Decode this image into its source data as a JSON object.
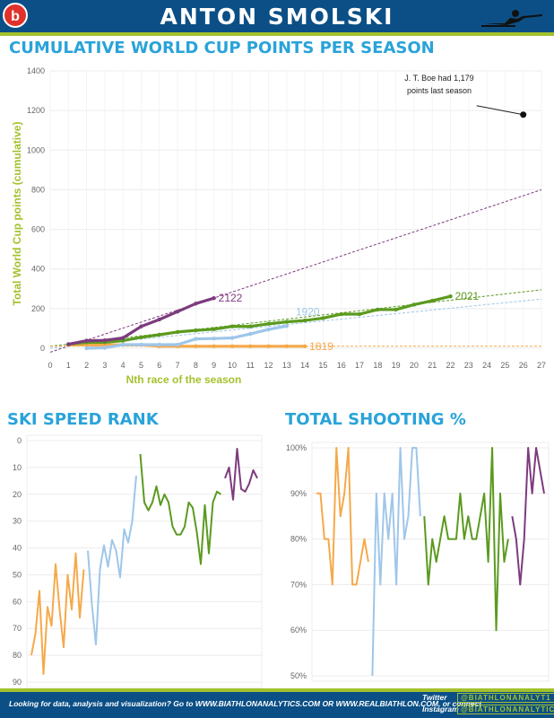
{
  "header": {
    "title": "ANTON SMOLSKI"
  },
  "sections": {
    "cumulative_title": "CUMULATIVE WORLD CUP POINTS PER SEASON",
    "ski_title": "SKI SPEED RANK",
    "shooting_title": "TOTAL SHOOTING %"
  },
  "footer": {
    "text": "Looking for data, analysis and visualization? Go to WWW.BIATHLONANALYTICS.COM OR WWW.REALBIATHLON.COM, or connect",
    "twitter_label": "Twitter",
    "twitter_handle": "@BIATHLONANALYT1",
    "instagram_label": "Instagram",
    "instagram_handle": "@BIATHLONANALYTICS"
  },
  "colors": {
    "header_bg": "#0b4f86",
    "accent_green": "#a3c12c",
    "title_blue": "#29a3d9",
    "s1819": "#f5a94a",
    "s1920": "#9fc6ea",
    "s2021": "#5b9a1f",
    "s2122": "#7d3b7e"
  },
  "chart_data": [
    {
      "type": "line",
      "xlabel": "Nth race of the season",
      "ylabel": "Total World Cup points (cumulative)",
      "xlim": [
        0,
        27
      ],
      "ylim": [
        0,
        1400
      ],
      "x_ticks": [
        0,
        1,
        2,
        3,
        4,
        5,
        6,
        7,
        8,
        9,
        10,
        11,
        12,
        13,
        14,
        15,
        16,
        17,
        18,
        19,
        20,
        21,
        22,
        23,
        24,
        25,
        26,
        27
      ],
      "y_ticks": [
        0,
        200,
        400,
        600,
        800,
        1000,
        1200,
        1400
      ],
      "annotation": {
        "lines": [
          "J. T. Boe had 1,179",
          "points last season"
        ],
        "point": [
          26,
          1179
        ]
      },
      "series": [
        {
          "name": "1819",
          "color": "#f5a94a",
          "x": [
            1,
            2,
            3,
            4,
            5,
            6,
            7,
            8,
            9,
            10,
            11,
            12,
            13,
            14
          ],
          "y": [
            17,
            17,
            17,
            17,
            17,
            10,
            10,
            10,
            10,
            10,
            10,
            10,
            10,
            10
          ]
        },
        {
          "name": "1920",
          "color": "#9fc6ea",
          "x": [
            2,
            3,
            4,
            5,
            6,
            7,
            8,
            9,
            10,
            11,
            12,
            13
          ],
          "y": [
            0,
            2,
            18,
            18,
            18,
            18,
            47,
            49,
            52,
            72,
            95,
            112
          ]
        },
        {
          "name": "2021",
          "color": "#5b9a1f",
          "x": [
            1,
            2,
            3,
            4,
            5,
            6,
            7,
            8,
            9,
            10,
            11,
            12,
            13,
            14,
            15,
            16,
            17,
            18,
            19,
            20,
            21,
            22
          ],
          "y": [
            20,
            30,
            30,
            38,
            55,
            68,
            82,
            90,
            96,
            110,
            110,
            123,
            133,
            140,
            152,
            172,
            172,
            195,
            195,
            220,
            240,
            262
          ]
        },
        {
          "name": "2122",
          "color": "#7d3b7e",
          "x": [
            1,
            2,
            3,
            4,
            5,
            6,
            7,
            8,
            9
          ],
          "y": [
            20,
            38,
            40,
            52,
            110,
            145,
            185,
            225,
            253
          ]
        }
      ],
      "trendlines": [
        {
          "series": "2122",
          "from": [
            0,
            -20
          ],
          "to": [
            27,
            800
          ]
        },
        {
          "series": "2021",
          "from": [
            0,
            10
          ],
          "to": [
            27,
            295
          ]
        },
        {
          "series": "1920",
          "from": [
            0,
            0
          ],
          "to": [
            27,
            248
          ]
        },
        {
          "series": "1819",
          "from": [
            0,
            10
          ],
          "to": [
            27,
            10
          ]
        }
      ]
    },
    {
      "type": "line",
      "ylim": [
        0,
        90
      ],
      "y_inverted": true,
      "y_ticks": [
        0,
        10,
        20,
        30,
        40,
        50,
        60,
        70,
        80,
        90
      ],
      "series": [
        {
          "name": "1819",
          "color": "#f5a94a",
          "values": [
            80,
            72,
            56,
            87,
            62,
            69,
            46,
            63,
            77,
            50,
            63,
            42,
            66,
            48
          ]
        },
        {
          "name": "1920",
          "color": "#9fc6ea",
          "values": [
            41,
            61,
            76,
            48,
            39,
            47,
            37,
            41,
            51,
            33,
            38,
            30,
            13
          ]
        },
        {
          "name": "2021",
          "color": "#5b9a1f",
          "values": [
            5,
            23,
            26,
            23,
            17,
            24,
            20,
            23,
            32,
            35,
            35,
            32,
            23,
            25,
            34,
            46,
            24,
            42,
            23,
            19,
            20
          ]
        },
        {
          "name": "2122",
          "color": "#7d3b7e",
          "values": [
            14,
            10,
            22,
            3,
            18,
            19,
            16,
            11,
            14
          ]
        }
      ]
    },
    {
      "type": "line",
      "ylim": [
        50,
        100
      ],
      "y_ticks": [
        50,
        60,
        70,
        80,
        90,
        100
      ],
      "y_tick_labels": [
        "50%",
        "60%",
        "70%",
        "80%",
        "90%",
        "100%"
      ],
      "series": [
        {
          "name": "1819",
          "color": "#f5a94a",
          "values": [
            90,
            90,
            80,
            80,
            70,
            100,
            85,
            90,
            100,
            70,
            70,
            75,
            80,
            75
          ]
        },
        {
          "name": "1920",
          "color": "#9fc6ea",
          "values": [
            50,
            90,
            70,
            90,
            80,
            90,
            70,
            100,
            80,
            85,
            100,
            100,
            85
          ]
        },
        {
          "name": "2021",
          "color": "#5b9a1f",
          "values": [
            85,
            70,
            80,
            75,
            80,
            85,
            80,
            80,
            80,
            90,
            80,
            85,
            80,
            80,
            85,
            90,
            75,
            100,
            60,
            90,
            75,
            80
          ]
        },
        {
          "name": "2122",
          "color": "#7d3b7e",
          "values": [
            85,
            80,
            70,
            80,
            100,
            90,
            100,
            95,
            90
          ]
        }
      ]
    }
  ]
}
